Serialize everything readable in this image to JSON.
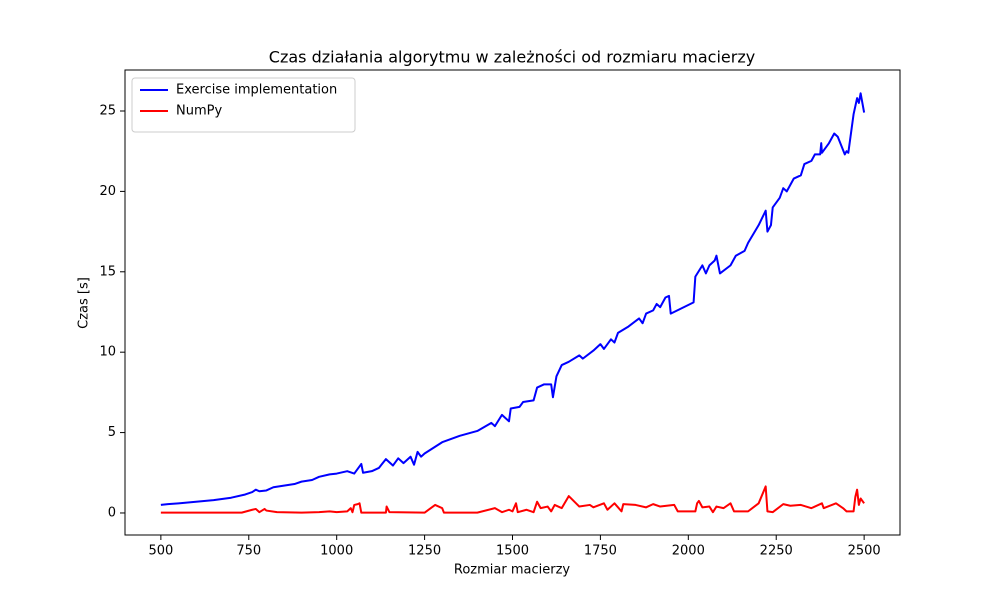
{
  "chart_data": {
    "type": "line",
    "title": "Czas działania algorytmu w zależności od rozmiaru macierzy",
    "x_label": "Rozmiar macierzy",
    "y_label": "Czas [s]",
    "xlim": [
      398,
      2602
    ],
    "ylim": [
      -1.37,
      27.55
    ],
    "xticks": [
      500,
      750,
      1000,
      1250,
      1500,
      1750,
      2000,
      2250,
      2500
    ],
    "yticks": [
      0,
      5,
      10,
      15,
      20,
      25
    ],
    "legend": "upper-left",
    "series": [
      {
        "name": "Exercise implementation",
        "color": "#0000ff",
        "x": [
          500,
          520,
          550,
          600,
          650,
          700,
          740,
          760,
          770,
          780,
          800,
          820,
          850,
          880,
          900,
          930,
          950,
          980,
          1000,
          1030,
          1050,
          1070,
          1075,
          1100,
          1120,
          1140,
          1160,
          1175,
          1190,
          1210,
          1220,
          1230,
          1240,
          1250,
          1300,
          1350,
          1400,
          1440,
          1450,
          1470,
          1490,
          1495,
          1520,
          1530,
          1560,
          1570,
          1590,
          1610,
          1615,
          1625,
          1640,
          1660,
          1690,
          1700,
          1730,
          1750,
          1760,
          1780,
          1790,
          1800,
          1830,
          1860,
          1870,
          1880,
          1900,
          1910,
          1920,
          1935,
          1945,
          1950,
          2015,
          2020,
          2040,
          2050,
          2060,
          2075,
          2080,
          2090,
          2120,
          2135,
          2160,
          2170,
          2200,
          2220,
          2225,
          2235,
          2240,
          2260,
          2270,
          2280,
          2300,
          2320,
          2330,
          2350,
          2360,
          2375,
          2378,
          2380,
          2400,
          2415,
          2425,
          2445,
          2450,
          2455,
          2470,
          2480,
          2485,
          2490,
          2500
        ],
        "values": [
          0.5,
          0.55,
          0.6,
          0.7,
          0.8,
          0.95,
          1.15,
          1.3,
          1.45,
          1.35,
          1.4,
          1.6,
          1.7,
          1.8,
          1.95,
          2.05,
          2.25,
          2.4,
          2.45,
          2.6,
          2.45,
          3.05,
          2.5,
          2.6,
          2.8,
          3.35,
          2.95,
          3.4,
          3.1,
          3.5,
          3.0,
          3.8,
          3.5,
          3.7,
          4.4,
          4.8,
          5.1,
          5.6,
          5.4,
          6.1,
          5.7,
          6.5,
          6.6,
          6.9,
          7.0,
          7.8,
          8.0,
          8.0,
          7.2,
          8.5,
          9.2,
          9.4,
          9.8,
          9.6,
          10.1,
          10.5,
          10.2,
          10.8,
          10.6,
          11.2,
          11.6,
          12.1,
          11.8,
          12.4,
          12.6,
          13.0,
          12.8,
          13.4,
          13.5,
          12.4,
          13.1,
          14.7,
          15.4,
          14.9,
          15.4,
          15.7,
          16.0,
          14.9,
          15.4,
          16.0,
          16.3,
          16.8,
          17.9,
          18.8,
          17.5,
          17.9,
          19.0,
          19.6,
          20.2,
          20.0,
          20.8,
          21.0,
          21.7,
          21.9,
          22.3,
          22.3,
          23.0,
          22.4,
          23.0,
          23.6,
          23.4,
          22.3,
          22.5,
          22.4,
          24.8,
          25.8,
          25.5,
          26.1,
          24.9
        ]
      },
      {
        "name": "NumPy",
        "color": "#ff0000",
        "x": [
          500,
          700,
          730,
          760,
          770,
          780,
          795,
          800,
          830,
          900,
          950,
          980,
          1000,
          1030,
          1040,
          1045,
          1050,
          1060,
          1065,
          1070,
          1140,
          1142,
          1150,
          1250,
          1280,
          1300,
          1305,
          1400,
          1450,
          1470,
          1490,
          1500,
          1510,
          1515,
          1540,
          1560,
          1570,
          1580,
          1600,
          1610,
          1620,
          1640,
          1660,
          1690,
          1720,
          1730,
          1760,
          1770,
          1790,
          1800,
          1810,
          1815,
          1850,
          1880,
          1900,
          1920,
          1960,
          1970,
          2020,
          2025,
          2030,
          2040,
          2060,
          2070,
          2080,
          2100,
          2120,
          2130,
          2170,
          2200,
          2220,
          2225,
          2240,
          2270,
          2290,
          2320,
          2350,
          2380,
          2385,
          2420,
          2440,
          2450,
          2470,
          2475,
          2480,
          2485,
          2490,
          2500
        ],
        "values": [
          0.02,
          0.02,
          0.02,
          0.2,
          0.25,
          0.05,
          0.25,
          0.15,
          0.05,
          0.02,
          0.05,
          0.1,
          0.05,
          0.1,
          0.3,
          0.05,
          0.5,
          0.55,
          0.6,
          0.02,
          0.02,
          0.4,
          0.05,
          0.02,
          0.5,
          0.3,
          0.02,
          0.02,
          0.3,
          0.05,
          0.2,
          0.1,
          0.6,
          0.05,
          0.2,
          0.05,
          0.7,
          0.3,
          0.4,
          0.1,
          0.5,
          0.3,
          1.05,
          0.4,
          0.5,
          0.35,
          0.6,
          0.2,
          0.6,
          0.35,
          0.1,
          0.55,
          0.5,
          0.35,
          0.55,
          0.4,
          0.5,
          0.1,
          0.1,
          0.6,
          0.75,
          0.35,
          0.4,
          0.05,
          0.4,
          0.3,
          0.6,
          0.1,
          0.1,
          0.6,
          1.65,
          0.1,
          0.05,
          0.55,
          0.45,
          0.5,
          0.3,
          0.6,
          0.3,
          0.6,
          0.3,
          0.1,
          0.1,
          1.0,
          1.45,
          0.5,
          0.9,
          0.6
        ]
      }
    ]
  }
}
